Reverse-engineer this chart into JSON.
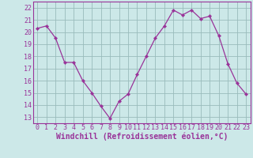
{
  "x": [
    0,
    1,
    2,
    3,
    4,
    5,
    6,
    7,
    8,
    9,
    10,
    11,
    12,
    13,
    14,
    15,
    16,
    17,
    18,
    19,
    20,
    21,
    22,
    23
  ],
  "y": [
    20.3,
    20.5,
    19.5,
    17.5,
    17.5,
    16.0,
    15.0,
    13.9,
    12.9,
    14.3,
    14.9,
    16.5,
    18.0,
    19.5,
    20.5,
    21.8,
    21.4,
    21.8,
    21.1,
    21.3,
    19.7,
    17.4,
    15.8,
    14.9
  ],
  "xlabel": "Windchill (Refroidissement éolien,°C)",
  "line_color": "#993399",
  "marker_color": "#993399",
  "bg_color": "#cce8e8",
  "grid_color": "#99bbbb",
  "ylim_min": 12.5,
  "ylim_max": 22.5,
  "yticks": [
    13,
    14,
    15,
    16,
    17,
    18,
    19,
    20,
    21,
    22
  ],
  "xticks": [
    0,
    1,
    2,
    3,
    4,
    5,
    6,
    7,
    8,
    9,
    10,
    11,
    12,
    13,
    14,
    15,
    16,
    17,
    18,
    19,
    20,
    21,
    22,
    23
  ],
  "xlabel_fontsize": 7.0,
  "tick_fontsize": 6.0,
  "label_color": "#993399"
}
